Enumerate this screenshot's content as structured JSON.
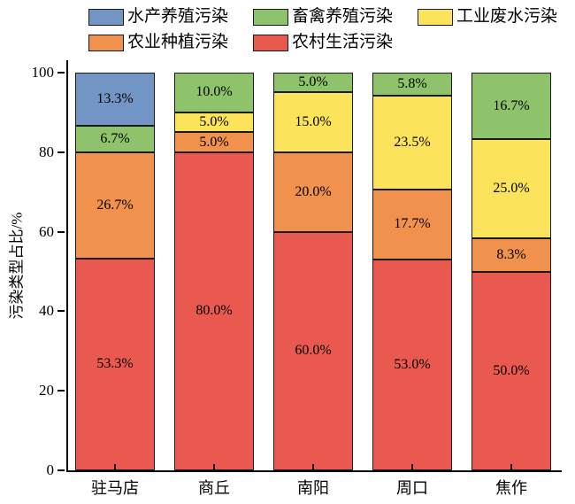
{
  "legend": {
    "rows": [
      [
        {
          "label": "水产养殖污染",
          "color": "#7295c6"
        },
        {
          "label": "畜禽养殖污染",
          "color": "#8ec36c"
        },
        {
          "label": "工业废水污染",
          "color": "#fbe35b"
        }
      ],
      [
        {
          "label": "农业种植污染",
          "color": "#f0914e"
        },
        {
          "label": "农村生活污染",
          "color": "#e9594f"
        }
      ]
    ]
  },
  "chart_data": {
    "type": "bar",
    "stacked": true,
    "title": "",
    "xlabel": "",
    "ylabel": "污染类型占比/%",
    "ylim": [
      0,
      100
    ],
    "yticks": [
      0,
      20,
      40,
      60,
      80,
      100
    ],
    "grid": false,
    "legend_position": "top",
    "segment_label_format": "one-decimal-percent",
    "categories": [
      "驻马店",
      "商丘",
      "南阳",
      "周口",
      "焦作"
    ],
    "series": [
      {
        "name": "农村生活污染",
        "color": "#e9594f",
        "values": [
          53.3,
          80.0,
          60.0,
          53.0,
          50.0
        ]
      },
      {
        "name": "农业种植污染",
        "color": "#f0914e",
        "values": [
          26.7,
          5.0,
          20.0,
          17.7,
          8.3
        ]
      },
      {
        "name": "工业废水污染",
        "color": "#fbe35b",
        "values": [
          0,
          5.0,
          15.0,
          23.5,
          25.0
        ]
      },
      {
        "name": "畜禽养殖污染",
        "color": "#8ec36c",
        "values": [
          6.7,
          10.0,
          5.0,
          5.8,
          16.7
        ]
      },
      {
        "name": "水产养殖污染",
        "color": "#7295c6",
        "values": [
          13.3,
          0,
          0,
          0,
          0
        ]
      }
    ],
    "colors": {
      "axis": "#000000",
      "segment_border": "#1a1a1a",
      "label_text": "#000000"
    }
  },
  "layout_notes": {
    "series_order": "series listed bottom-to-top of stack"
  }
}
